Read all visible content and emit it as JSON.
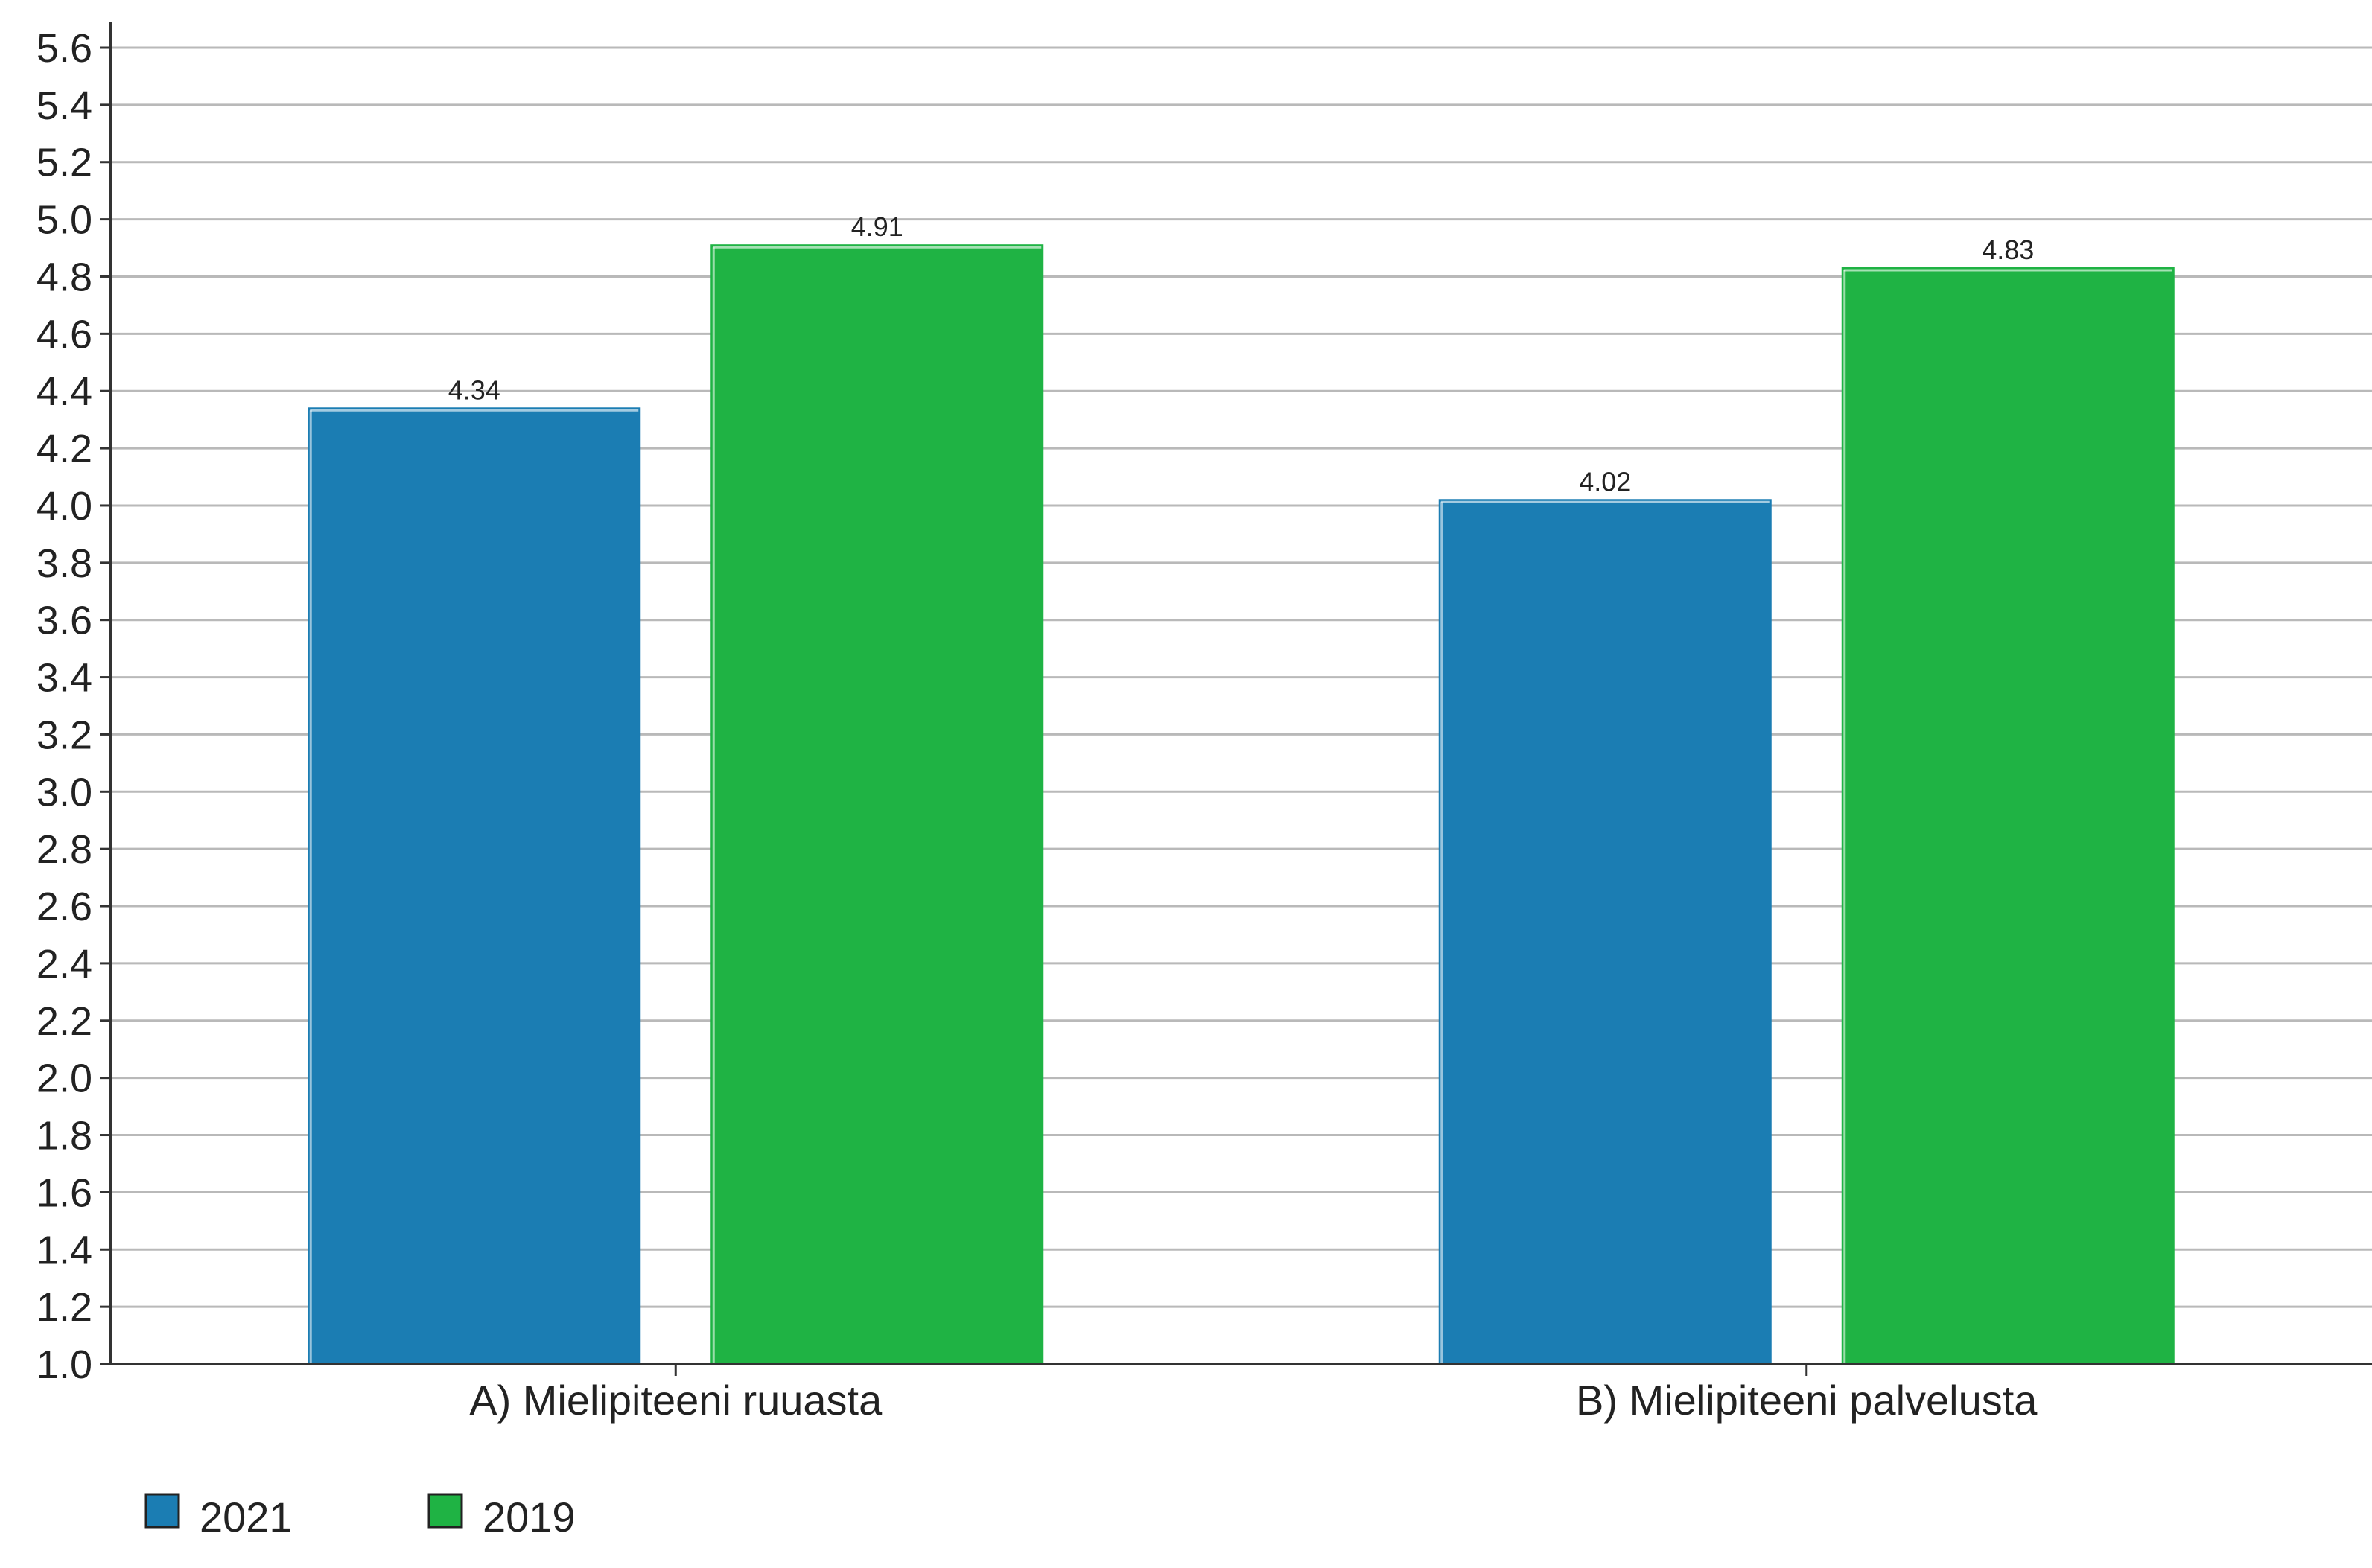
{
  "chart_data": {
    "type": "bar",
    "title": "",
    "xlabel": "",
    "ylabel": "",
    "categories": [
      "A) Mielipiteeni ruuasta",
      "B) Mielipiteeni palvelusta"
    ],
    "series": [
      {
        "name": "2021",
        "values": [
          4.34,
          4.02
        ],
        "color": "#1b7db3"
      },
      {
        "name": "2019",
        "values": [
          4.91,
          4.83
        ],
        "color": "#1fb344"
      }
    ],
    "ylim": [
      1.0,
      5.6
    ],
    "yticks": [
      "1.0",
      "1.2",
      "1.4",
      "1.6",
      "1.8",
      "2.0",
      "2.2",
      "2.4",
      "2.6",
      "2.8",
      "3.0",
      "3.2",
      "3.4",
      "3.6",
      "3.8",
      "4.0",
      "4.2",
      "4.4",
      "4.6",
      "4.8",
      "5.0",
      "5.2",
      "5.4",
      "5.6"
    ],
    "data_labels": [
      [
        "4.34",
        "4.02"
      ],
      [
        "4.91",
        "4.83"
      ]
    ],
    "grid": true,
    "legend_position": "bottom-left"
  }
}
